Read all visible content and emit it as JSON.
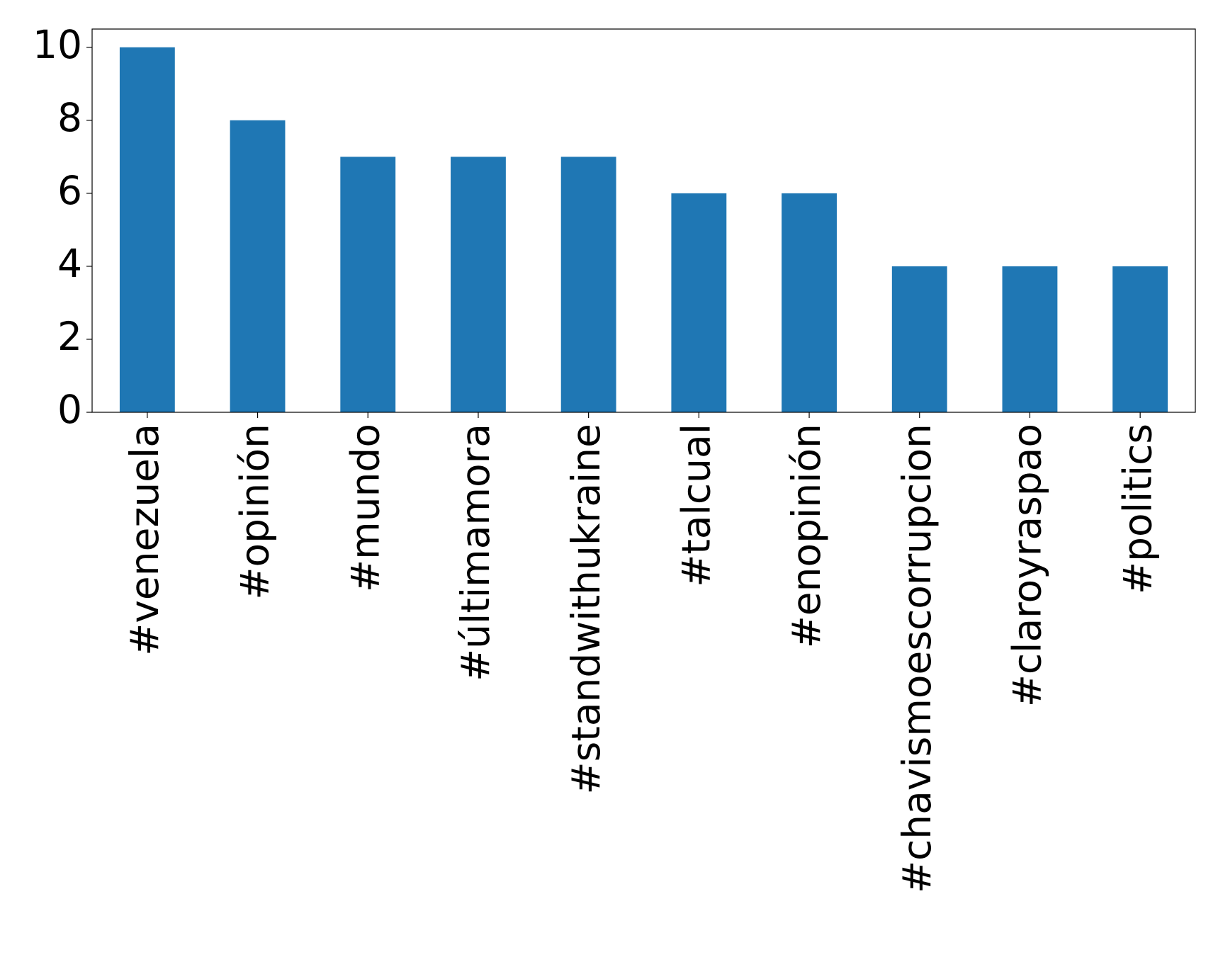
{
  "chart_data": {
    "type": "bar",
    "categories": [
      "#venezuela",
      "#opinión",
      "#mundo",
      "#últimamora",
      "#standwithukraine",
      "#talcual",
      "#enopinión",
      "#chavismoescorrupcion",
      "#claroyraspao",
      "#politics"
    ],
    "values": [
      10,
      8,
      7,
      7,
      7,
      6,
      6,
      4,
      4,
      4
    ],
    "color": "#1f77b4",
    "ylim": [
      0,
      10.5
    ],
    "yticks": [
      0,
      2,
      4,
      6,
      8,
      10
    ],
    "grid": false
  }
}
